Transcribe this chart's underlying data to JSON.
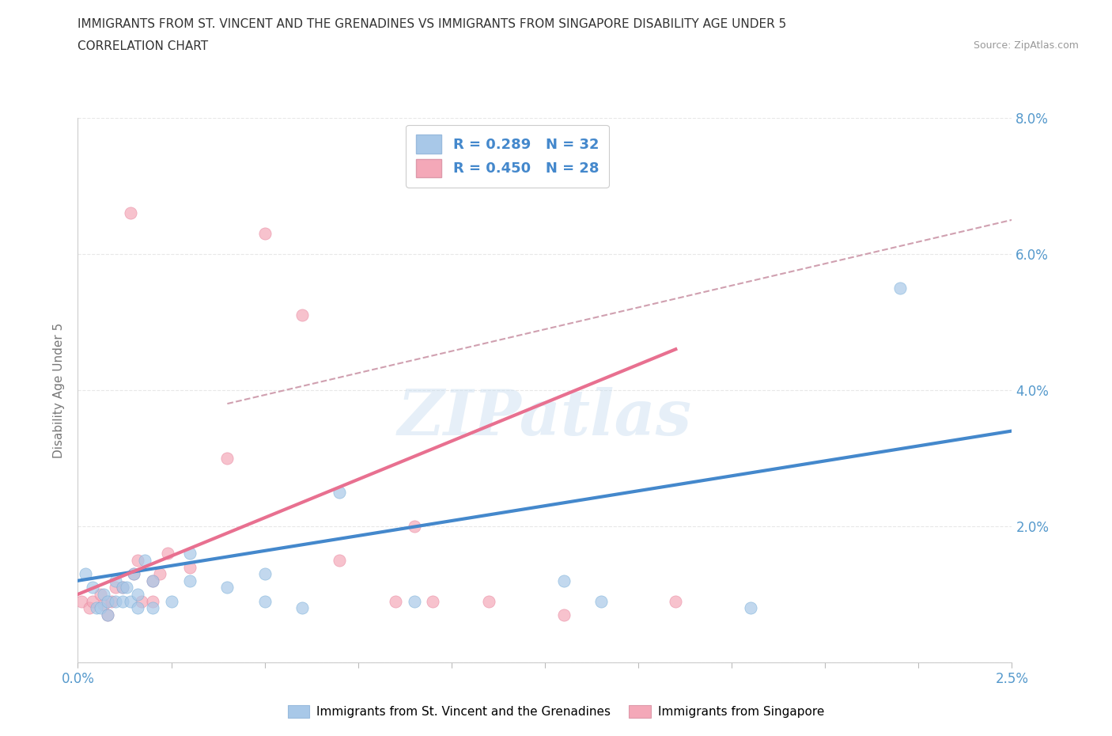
{
  "title_line1": "IMMIGRANTS FROM ST. VINCENT AND THE GRENADINES VS IMMIGRANTS FROM SINGAPORE DISABILITY AGE UNDER 5",
  "title_line2": "CORRELATION CHART",
  "source_text": "Source: ZipAtlas.com",
  "ylabel": "Disability Age Under 5",
  "xmin": 0.0,
  "xmax": 0.025,
  "ymin": 0.0,
  "ymax": 0.08,
  "ytick_values": [
    0.0,
    0.02,
    0.04,
    0.06,
    0.08
  ],
  "xtick_values": [
    0.0,
    0.0025,
    0.005,
    0.0075,
    0.01,
    0.0125,
    0.015,
    0.0175,
    0.02,
    0.0225,
    0.025
  ],
  "legend_r1": "R = 0.289",
  "legend_n1": "N = 32",
  "legend_r2": "R = 0.450",
  "legend_n2": "N = 28",
  "color_blue": "#a8c8e8",
  "color_blue_edge": "#7ab0d8",
  "color_pink": "#f4a8b8",
  "color_pink_edge": "#e888a0",
  "color_line_blue": "#4488cc",
  "color_line_pink": "#e87090",
  "color_dash": "#d0a0b0",
  "blue_x": [
    0.0002,
    0.0004,
    0.0005,
    0.0006,
    0.0007,
    0.0008,
    0.0008,
    0.001,
    0.001,
    0.0012,
    0.0012,
    0.0013,
    0.0014,
    0.0015,
    0.0016,
    0.0016,
    0.0018,
    0.002,
    0.002,
    0.0025,
    0.003,
    0.003,
    0.004,
    0.005,
    0.005,
    0.006,
    0.007,
    0.009,
    0.013,
    0.014,
    0.018,
    0.022
  ],
  "blue_y": [
    0.013,
    0.011,
    0.008,
    0.008,
    0.01,
    0.009,
    0.007,
    0.009,
    0.012,
    0.009,
    0.011,
    0.011,
    0.009,
    0.013,
    0.008,
    0.01,
    0.015,
    0.008,
    0.012,
    0.009,
    0.012,
    0.016,
    0.011,
    0.009,
    0.013,
    0.008,
    0.025,
    0.009,
    0.012,
    0.009,
    0.008,
    0.055
  ],
  "pink_x": [
    0.0001,
    0.0003,
    0.0004,
    0.0006,
    0.0007,
    0.0008,
    0.0009,
    0.001,
    0.0012,
    0.0014,
    0.0015,
    0.0016,
    0.0017,
    0.002,
    0.002,
    0.0022,
    0.0024,
    0.003,
    0.004,
    0.005,
    0.006,
    0.007,
    0.0085,
    0.009,
    0.0095,
    0.011,
    0.013,
    0.016
  ],
  "pink_y": [
    0.009,
    0.008,
    0.009,
    0.01,
    0.0085,
    0.007,
    0.009,
    0.011,
    0.011,
    0.066,
    0.013,
    0.015,
    0.009,
    0.012,
    0.009,
    0.013,
    0.016,
    0.014,
    0.03,
    0.063,
    0.051,
    0.015,
    0.009,
    0.02,
    0.009,
    0.009,
    0.007,
    0.009
  ],
  "blue_trend_x": [
    0.0,
    0.025
  ],
  "blue_trend_y": [
    0.012,
    0.034
  ],
  "pink_trend_x": [
    0.0,
    0.016
  ],
  "pink_trend_y": [
    0.01,
    0.046
  ],
  "dash_trend_x": [
    0.004,
    0.025
  ],
  "dash_trend_y": [
    0.038,
    0.065
  ],
  "watermark": "ZIPatlas",
  "background_color": "#ffffff",
  "grid_color": "#e8e8e8",
  "grid_style": "--"
}
